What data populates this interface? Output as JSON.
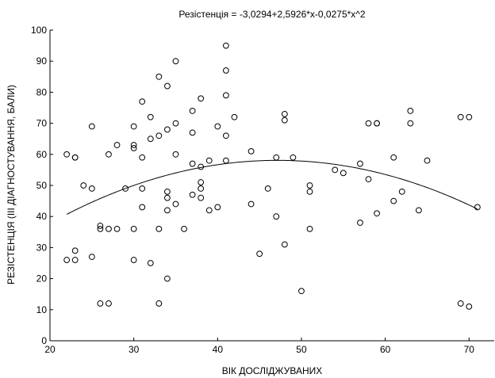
{
  "chart_data": {
    "type": "scatter",
    "title": "Резістенція = -3,0294+2,5926*x-0,0275*x^2",
    "xlabel": "ВІК ДОСЛІДЖУВАНИХ",
    "ylabel": "РЕЗІСТЕНЦІЯ (ІІІ ДІАГНОСТУВАННЯ, БАЛИ)",
    "xlim": [
      20,
      73
    ],
    "ylim": [
      0,
      100
    ],
    "x_ticks": [
      20,
      30,
      40,
      50,
      60,
      70
    ],
    "y_ticks": [
      0,
      10,
      20,
      30,
      40,
      50,
      60,
      70,
      80,
      90,
      100
    ],
    "grid": false,
    "fit": {
      "intercept": -3.0294,
      "b1": 2.5926,
      "b2": -0.0275,
      "x_range": [
        22,
        71
      ]
    },
    "points": [
      [
        22,
        60
      ],
      [
        22,
        26
      ],
      [
        23,
        59
      ],
      [
        23,
        59
      ],
      [
        23,
        29
      ],
      [
        23,
        26
      ],
      [
        24,
        50
      ],
      [
        25,
        69
      ],
      [
        25,
        49
      ],
      [
        25,
        27
      ],
      [
        26,
        37
      ],
      [
        26,
        36
      ],
      [
        26,
        12
      ],
      [
        27,
        60
      ],
      [
        27,
        36
      ],
      [
        27,
        12
      ],
      [
        28,
        63
      ],
      [
        28,
        36
      ],
      [
        29,
        49
      ],
      [
        30,
        69
      ],
      [
        30,
        63
      ],
      [
        30,
        62
      ],
      [
        30,
        36
      ],
      [
        30,
        26
      ],
      [
        31,
        77
      ],
      [
        31,
        59
      ],
      [
        31,
        49
      ],
      [
        31,
        43
      ],
      [
        32,
        72
      ],
      [
        32,
        65
      ],
      [
        32,
        25
      ],
      [
        33,
        85
      ],
      [
        33,
        66
      ],
      [
        33,
        36
      ],
      [
        33,
        12
      ],
      [
        34,
        82
      ],
      [
        34,
        68
      ],
      [
        34,
        48
      ],
      [
        34,
        46
      ],
      [
        34,
        42
      ],
      [
        34,
        20
      ],
      [
        35,
        90
      ],
      [
        35,
        70
      ],
      [
        35,
        60
      ],
      [
        35,
        44
      ],
      [
        36,
        36
      ],
      [
        37,
        74
      ],
      [
        37,
        67
      ],
      [
        37,
        57
      ],
      [
        37,
        47
      ],
      [
        38,
        78
      ],
      [
        38,
        56
      ],
      [
        38,
        51
      ],
      [
        38,
        49
      ],
      [
        38,
        46
      ],
      [
        39,
        58
      ],
      [
        39,
        42
      ],
      [
        40,
        69
      ],
      [
        40,
        43
      ],
      [
        41,
        95
      ],
      [
        41,
        87
      ],
      [
        41,
        79
      ],
      [
        41,
        66
      ],
      [
        41,
        58
      ],
      [
        42,
        72
      ],
      [
        44,
        61
      ],
      [
        44,
        44
      ],
      [
        45,
        28
      ],
      [
        46,
        49
      ],
      [
        47,
        59
      ],
      [
        47,
        40
      ],
      [
        48,
        73
      ],
      [
        48,
        71
      ],
      [
        48,
        31
      ],
      [
        49,
        59
      ],
      [
        50,
        16
      ],
      [
        51,
        50
      ],
      [
        51,
        48
      ],
      [
        51,
        36
      ],
      [
        54,
        55
      ],
      [
        55,
        54
      ],
      [
        57,
        57
      ],
      [
        57,
        38
      ],
      [
        58,
        70
      ],
      [
        58,
        52
      ],
      [
        59,
        70
      ],
      [
        59,
        70
      ],
      [
        59,
        41
      ],
      [
        61,
        59
      ],
      [
        61,
        45
      ],
      [
        62,
        48
      ],
      [
        63,
        74
      ],
      [
        63,
        70
      ],
      [
        64,
        42
      ],
      [
        65,
        58
      ],
      [
        69,
        72
      ],
      [
        69,
        12
      ],
      [
        70,
        72
      ],
      [
        70,
        11
      ],
      [
        71,
        43
      ]
    ]
  }
}
